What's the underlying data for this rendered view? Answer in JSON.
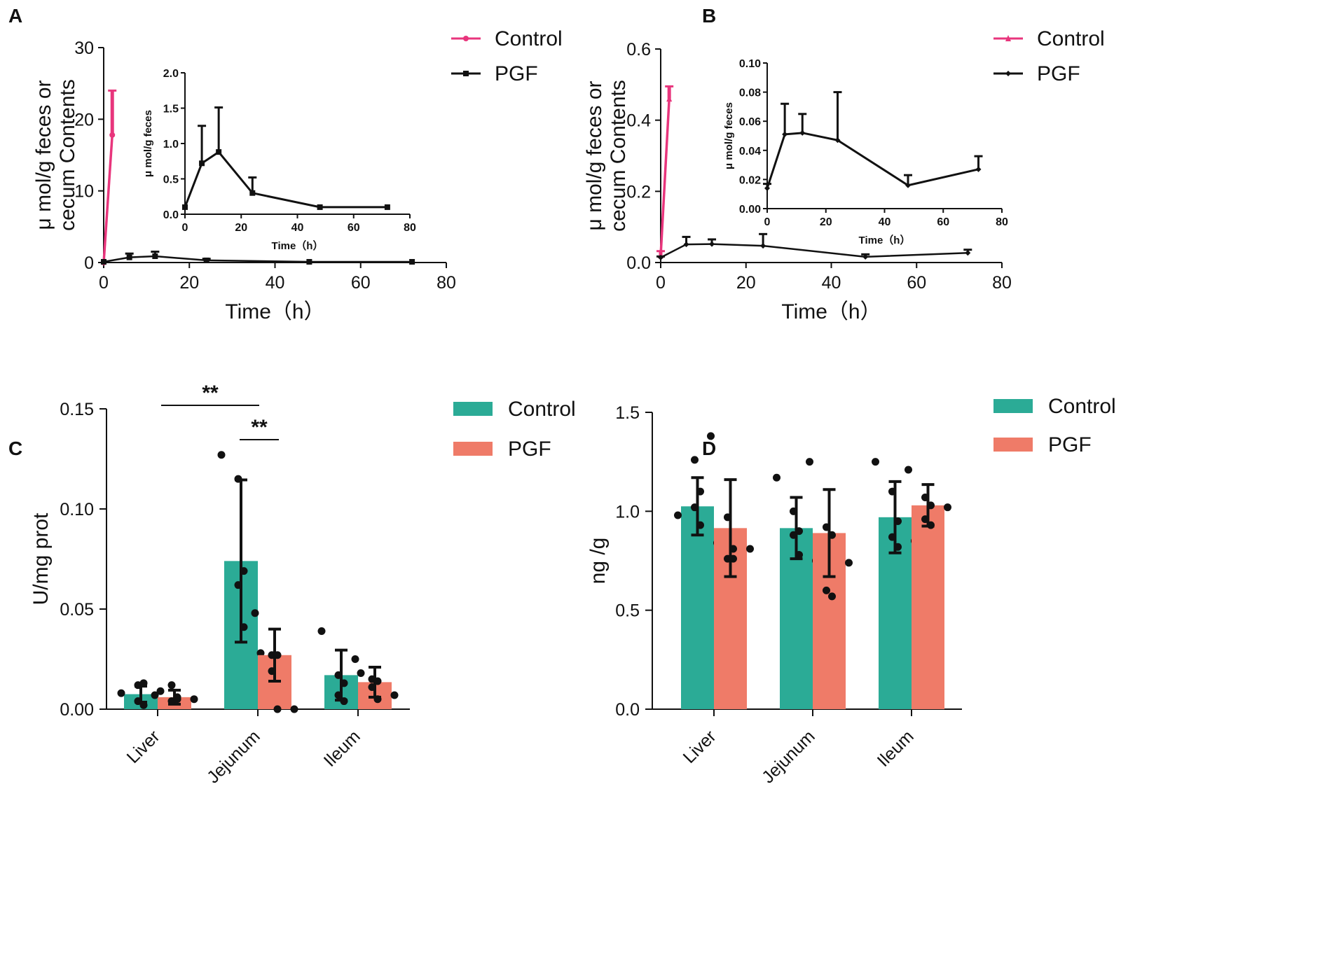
{
  "chart_data": [
    {
      "panel": "A",
      "type": "line",
      "xlabel": "Time（h）",
      "ylabel_line1": "μ mol/g feces or",
      "ylabel_line2": "cecum Contents",
      "xlim": [
        0,
        80
      ],
      "ylim": [
        0,
        30
      ],
      "xticks": [
        0,
        20,
        40,
        60,
        80
      ],
      "yticks": [
        0,
        10,
        20,
        30
      ],
      "legend": [
        "Control",
        "PGF"
      ],
      "series": [
        {
          "name": "Control",
          "color": "#e8357c",
          "marker": "circle",
          "x": [
            0,
            2
          ],
          "y": [
            0,
            17.8
          ],
          "err": [
            0,
            6.2
          ]
        },
        {
          "name": "PGF",
          "color": "#111111",
          "marker": "square",
          "x": [
            0,
            6,
            12,
            24,
            48,
            72
          ],
          "y": [
            0.1,
            0.72,
            0.88,
            0.3,
            0.1,
            0.1
          ],
          "err": [
            0,
            0.53,
            0.63,
            0.22,
            0,
            0
          ]
        }
      ],
      "inset": {
        "xlabel": "Time（h）",
        "ylabel": "μ mol/g feces",
        "xlim": [
          0,
          80
        ],
        "ylim": [
          0,
          2.0
        ],
        "xticks": [
          0,
          20,
          40,
          60,
          80
        ],
        "yticks": [
          "0.0",
          "0.5",
          "1.0",
          "1.5",
          "2.0"
        ],
        "series": {
          "name": "PGF",
          "x": [
            0,
            6,
            12,
            24,
            48,
            72
          ],
          "y": [
            0.1,
            0.72,
            0.88,
            0.3,
            0.1,
            0.1
          ],
          "err": [
            0,
            0.53,
            0.63,
            0.22,
            0,
            0
          ]
        }
      }
    },
    {
      "panel": "B",
      "type": "line",
      "xlabel": "Time（h）",
      "ylabel_line1": "μ mol/g feces or",
      "ylabel_line2": "cecum Contents",
      "xlim": [
        0,
        80
      ],
      "ylim": [
        0,
        0.6
      ],
      "xticks": [
        0,
        20,
        40,
        60,
        80
      ],
      "yticks": [
        "0.0",
        "0.2",
        "0.4",
        "0.6"
      ],
      "legend": [
        "Control",
        "PGF"
      ],
      "series": [
        {
          "name": "Control",
          "color": "#e8357c",
          "marker": "triangle",
          "x": [
            0,
            2
          ],
          "y": [
            0.02,
            0.46
          ],
          "err": [
            0.012,
            0.035
          ]
        },
        {
          "name": "PGF",
          "color": "#111111",
          "marker": "diamond",
          "x": [
            0,
            6,
            12,
            24,
            48,
            72
          ],
          "y": [
            0.014,
            0.051,
            0.052,
            0.047,
            0.016,
            0.027
          ],
          "err": [
            0.003,
            0.021,
            0.013,
            0.033,
            0.007,
            0.009
          ]
        }
      ],
      "inset": {
        "xlabel": "Time（h）",
        "ylabel": "μ mol/g feces",
        "xlim": [
          0,
          80
        ],
        "ylim": [
          0,
          0.1
        ],
        "xticks": [
          0,
          20,
          40,
          60,
          80
        ],
        "yticks": [
          "0.00",
          "0.02",
          "0.04",
          "0.06",
          "0.08",
          "0.10"
        ],
        "series": {
          "name": "PGF",
          "x": [
            0,
            6,
            12,
            24,
            48,
            72
          ],
          "y": [
            0.014,
            0.051,
            0.052,
            0.047,
            0.016,
            0.027
          ],
          "err": [
            0.003,
            0.021,
            0.013,
            0.033,
            0.007,
            0.009
          ]
        }
      }
    },
    {
      "panel": "C",
      "type": "bar",
      "ylabel": "U/mg prot",
      "ylim": [
        0,
        0.15
      ],
      "yticks": [
        "0.00",
        "0.05",
        "0.10",
        "0.15"
      ],
      "categories": [
        "Liver",
        "Jejunum",
        "Ileum"
      ],
      "legend": [
        "Control",
        "PGF"
      ],
      "series": [
        {
          "name": "Control",
          "color": "#2bab96",
          "values": [
            0.0075,
            0.074,
            0.017
          ],
          "sd": [
            0.004,
            0.0405,
            0.0125
          ],
          "points": [
            [
              0.008,
              0.012,
              0.013,
              0.004,
              0.002,
              0.009
            ],
            [
              0.127,
              0.115,
              0.069,
              0.062,
              0.041,
              0.028
            ],
            [
              0.039,
              0.017,
              0.013,
              0.007,
              0.004,
              0.018
            ]
          ]
        },
        {
          "name": "PGF",
          "color": "#ef7b68",
          "values": [
            0.006,
            0.027,
            0.0135
          ],
          "sd": [
            0.0035,
            0.013,
            0.0075
          ],
          "points": [
            [
              0.007,
              0.012,
              0.006,
              0.004,
              0.005,
              0.005
            ],
            [
              0.048,
              0.027,
              0.027,
              0.019,
              0.0,
              0.0
            ],
            [
              0.025,
              0.015,
              0.014,
              0.011,
              0.005,
              0.007
            ]
          ]
        }
      ],
      "significance": [
        {
          "label": "**",
          "from": "Liver",
          "to": "Jejunum"
        },
        {
          "label": "**",
          "from": "Jejunum",
          "to": "Jejunum"
        }
      ]
    },
    {
      "panel": "D",
      "type": "bar",
      "ylabel": "ng /g",
      "ylim": [
        0,
        1.5
      ],
      "yticks": [
        "0.0",
        "0.5",
        "1.0",
        "1.5"
      ],
      "categories": [
        "Liver",
        "Jejunum",
        "Ileum"
      ],
      "legend": [
        "Control",
        "PGF"
      ],
      "series": [
        {
          "name": "Control",
          "color": "#2bab96",
          "values": [
            1.025,
            0.915,
            0.97
          ],
          "sd": [
            0.145,
            0.155,
            0.18
          ],
          "points": [
            [
              0.98,
              1.26,
              1.1,
              1.02,
              0.93,
              0.84
            ],
            [
              1.17,
              1.0,
              0.9,
              0.88,
              0.78,
              0.75
            ],
            [
              1.25,
              1.1,
              0.95,
              0.87,
              0.82,
              0.85
            ]
          ]
        },
        {
          "name": "PGF",
          "color": "#ef7b68",
          "values": [
            0.915,
            0.89,
            1.03
          ],
          "sd": [
            0.245,
            0.22,
            0.105
          ],
          "points": [
            [
              1.38,
              0.97,
              0.81,
              0.76,
              0.76,
              0.81
            ],
            [
              1.25,
              0.92,
              0.88,
              0.6,
              0.57,
              0.74
            ],
            [
              1.21,
              1.07,
              1.03,
              0.96,
              0.93,
              1.02
            ]
          ]
        }
      ]
    }
  ],
  "ui": {
    "panel_labels": [
      "A",
      "B",
      "C",
      "D"
    ]
  }
}
